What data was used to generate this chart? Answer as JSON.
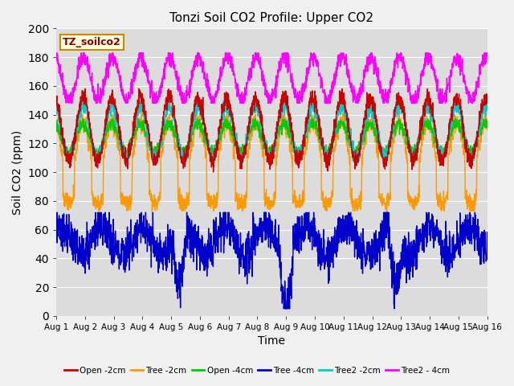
{
  "title": "Tonzi Soil CO2 Profile: Upper CO2",
  "xlabel": "Time",
  "ylabel": "Soil CO2 (ppm)",
  "ylim": [
    0,
    200
  ],
  "yticks": [
    0,
    20,
    40,
    60,
    80,
    100,
    120,
    140,
    160,
    180,
    200
  ],
  "xtick_labels": [
    "Aug 1",
    "Aug 2",
    "Aug 3",
    "Aug 4",
    "Aug 5",
    "Aug 6",
    "Aug 7",
    "Aug 8",
    "Aug 9",
    "Aug 10",
    "Aug 11",
    "Aug 12",
    "Aug 13",
    "Aug 14",
    "Aug 15",
    "Aug 16"
  ],
  "legend_label": "TZ_soilco2",
  "series_labels": [
    "Open -2cm",
    "Tree -2cm",
    "Open -4cm",
    "Tree -4cm",
    "Tree2 -2cm",
    "Tree2 - 4cm"
  ],
  "series_colors": [
    "#cc0000",
    "#ff9900",
    "#00cc00",
    "#0000cc",
    "#00cccc",
    "#ff00ff"
  ],
  "plot_bg_color": "#dcdcdc",
  "fig_bg_color": "#f0f0f0",
  "n_points": 2160,
  "days": 15,
  "seed": 42
}
